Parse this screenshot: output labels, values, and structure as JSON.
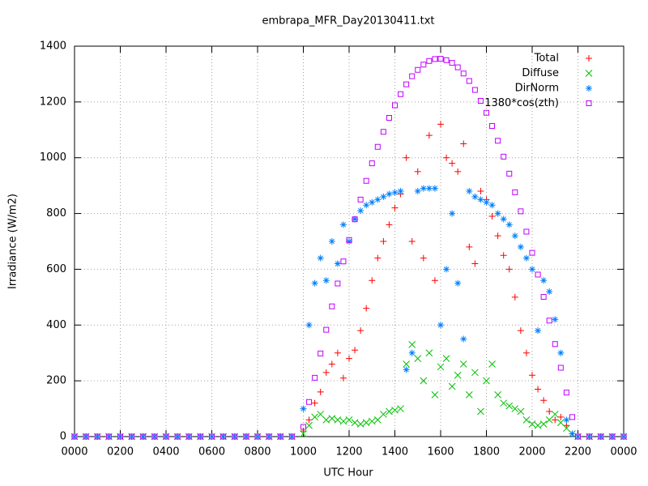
{
  "chart_data": {
    "type": "scatter",
    "title": "embrapa_MFR_Day20130411.txt",
    "x_label": "UTC Hour",
    "y_label": "Irradiance (W/m2)",
    "xlim": [
      0,
      24
    ],
    "ylim": [
      0,
      1400
    ],
    "xticks": [
      {
        "value": 0,
        "label": "0000"
      },
      {
        "value": 2,
        "label": "0200"
      },
      {
        "value": 4,
        "label": "0400"
      },
      {
        "value": 6,
        "label": "0600"
      },
      {
        "value": 8,
        "label": "0800"
      },
      {
        "value": 10,
        "label": "1000"
      },
      {
        "value": 12,
        "label": "1200"
      },
      {
        "value": 14,
        "label": "1400"
      },
      {
        "value": 16,
        "label": "1600"
      },
      {
        "value": 18,
        "label": "1800"
      },
      {
        "value": 20,
        "label": "2000"
      },
      {
        "value": 22,
        "label": "2200"
      },
      {
        "value": 24,
        "label": "0000"
      }
    ],
    "yticks": [
      0,
      200,
      400,
      600,
      800,
      1000,
      1200,
      1400
    ],
    "grid": true,
    "legend": "top-right",
    "x": [
      0,
      0.5,
      1,
      1.5,
      2,
      2.5,
      3,
      3.5,
      4,
      4.5,
      5,
      5.5,
      6,
      6.5,
      7,
      7.5,
      8,
      8.5,
      9,
      9.5,
      10,
      10.25,
      10.5,
      10.75,
      11,
      11.25,
      11.5,
      11.75,
      12,
      12.25,
      12.5,
      12.75,
      13,
      13.25,
      13.5,
      13.75,
      14,
      14.25,
      14.5,
      14.75,
      15,
      15.25,
      15.5,
      15.75,
      16,
      16.25,
      16.5,
      16.75,
      17,
      17.25,
      17.5,
      17.75,
      18,
      18.25,
      18.5,
      18.75,
      19,
      19.25,
      19.5,
      19.75,
      20,
      20.25,
      20.5,
      20.75,
      21,
      21.25,
      21.5,
      21.75,
      22,
      22.5,
      23,
      23.5,
      24
    ],
    "series": [
      {
        "name": "Total",
        "color": "#ff0000",
        "marker": "plus",
        "values": [
          0,
          0,
          0,
          0,
          0,
          0,
          0,
          0,
          0,
          0,
          0,
          0,
          0,
          0,
          0,
          0,
          0,
          0,
          0,
          0,
          20,
          60,
          120,
          160,
          230,
          260,
          300,
          210,
          280,
          310,
          380,
          460,
          560,
          640,
          700,
          760,
          820,
          870,
          1000,
          700,
          950,
          640,
          1080,
          560,
          1120,
          1000,
          980,
          950,
          1050,
          680,
          620,
          880,
          850,
          790,
          720,
          650,
          600,
          500,
          380,
          300,
          220,
          170,
          130,
          90,
          60,
          70,
          40,
          10,
          0,
          0,
          0,
          0,
          0
        ]
      },
      {
        "name": "Diffuse",
        "color": "#00c000",
        "marker": "cross",
        "values": [
          0,
          0,
          0,
          0,
          0,
          0,
          0,
          0,
          0,
          0,
          0,
          0,
          0,
          0,
          0,
          0,
          0,
          0,
          0,
          0,
          10,
          40,
          70,
          80,
          60,
          65,
          60,
          55,
          60,
          50,
          45,
          50,
          55,
          60,
          80,
          90,
          95,
          100,
          260,
          330,
          280,
          200,
          300,
          150,
          250,
          280,
          180,
          220,
          260,
          150,
          230,
          90,
          200,
          260,
          150,
          120,
          110,
          100,
          90,
          60,
          45,
          40,
          45,
          60,
          80,
          50,
          30,
          10,
          0,
          0,
          0,
          0,
          0
        ]
      },
      {
        "name": "DirNorm",
        "color": "#0080ff",
        "marker": "star",
        "values": [
          0,
          0,
          0,
          0,
          0,
          0,
          0,
          0,
          0,
          0,
          0,
          0,
          0,
          0,
          0,
          0,
          0,
          0,
          0,
          0,
          100,
          400,
          550,
          640,
          560,
          700,
          620,
          760,
          700,
          780,
          810,
          830,
          840,
          850,
          860,
          870,
          875,
          880,
          240,
          300,
          880,
          890,
          890,
          890,
          400,
          600,
          800,
          550,
          350,
          880,
          860,
          850,
          840,
          830,
          800,
          780,
          760,
          720,
          680,
          640,
          600,
          380,
          560,
          520,
          420,
          300,
          60,
          10,
          0,
          0,
          0,
          0,
          0
        ]
      },
      {
        "name": "1380*cos(zth)",
        "color": "#c000ff",
        "marker": "square",
        "values": [
          0,
          0,
          0,
          0,
          0,
          0,
          0,
          0,
          0,
          0,
          0,
          0,
          0,
          0,
          0,
          0,
          0,
          0,
          0,
          0,
          35,
          124,
          211,
          298,
          383,
          467,
          549,
          628,
          705,
          779,
          850,
          917,
          980,
          1039,
          1093,
          1143,
          1188,
          1228,
          1263,
          1292,
          1315,
          1334,
          1347,
          1354,
          1355,
          1350,
          1340,
          1324,
          1302,
          1275,
          1243,
          1204,
          1161,
          1114,
          1061,
          1004,
          943,
          876,
          808,
          735,
          659,
          581,
          501,
          416,
          332,
          247,
          158,
          70,
          0,
          0,
          0,
          0,
          0
        ]
      }
    ]
  }
}
